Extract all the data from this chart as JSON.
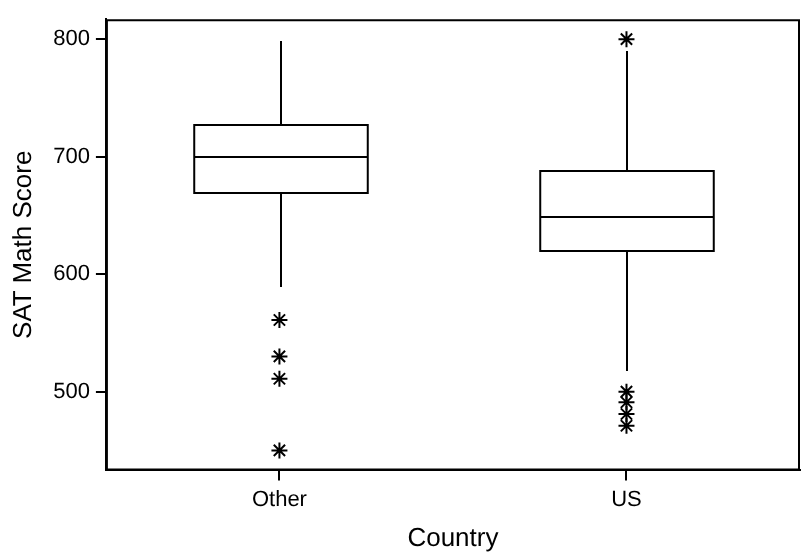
{
  "chart_data": {
    "type": "box",
    "xlabel": "Country",
    "ylabel": "SAT Math Score",
    "categories": [
      "Other",
      "US"
    ],
    "boxes": [
      {
        "low": 590,
        "q1": 670,
        "median": 700,
        "q3": 727,
        "high": 800,
        "outliers": [
          561,
          530,
          511,
          450
        ]
      },
      {
        "low": 518,
        "q1": 620,
        "median": 649,
        "q3": 688,
        "high": 790,
        "outliers": [
          800,
          500,
          491,
          481,
          471
        ]
      }
    ],
    "ylim": [
      433,
      817
    ],
    "yticks": [
      500,
      600,
      700,
      800
    ],
    "grid": false,
    "legend": false,
    "marker": "star",
    "color": "#000000"
  }
}
